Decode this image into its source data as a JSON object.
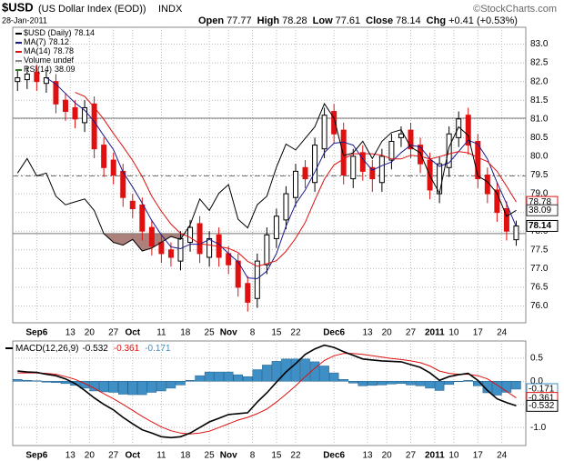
{
  "header": {
    "symbol": "$USD",
    "name": "(US Dollar Index (EOD))",
    "exchange": "INDX",
    "date": "28-Jan-2011",
    "watermark": "©StockCharts.com",
    "quote": [
      {
        "label": "Open",
        "value": 77.77
      },
      {
        "label": "High",
        "value": 78.28
      },
      {
        "label": "Low",
        "value": 77.61
      },
      {
        "label": "Close",
        "value": 78.14
      },
      {
        "label": "Chg",
        "value": "+0.41 (+0.53%)"
      }
    ]
  },
  "chart_data": [
    {
      "type": "candlestick",
      "price_name": "$USD (Daily)",
      "price_legend_value": 78.14,
      "volume_legend": "Volume undef",
      "up_color": "#000000",
      "down_color": "#e01010",
      "x": [
        0,
        2,
        4,
        6,
        8,
        10,
        12,
        14,
        16,
        18,
        20,
        22,
        24,
        26,
        28,
        30,
        32,
        34,
        36,
        38,
        40,
        42,
        44,
        46,
        48,
        50,
        52,
        54,
        56,
        58,
        60,
        62,
        64,
        66,
        68,
        70,
        72,
        74,
        76,
        78,
        80,
        82,
        84,
        86,
        88,
        90,
        92,
        94,
        96,
        98,
        100,
        102,
        104
      ],
      "open": [
        82.0,
        82.05,
        82.25,
        81.95,
        82.0,
        81.5,
        81.3,
        80.9,
        81.4,
        80.3,
        79.9,
        79.6,
        78.8,
        78.7,
        78.1,
        77.7,
        77.5,
        77.2,
        77.7,
        78.2,
        77.3,
        77.9,
        77.4,
        77.2,
        76.6,
        76.2,
        77.1,
        77.8,
        78.3,
        78.9,
        79.7,
        79.3,
        80.2,
        81.2,
        80.7,
        79.4,
        80.1,
        79.7,
        79.3,
        79.9,
        80.5,
        80.7,
        80.3,
        79.9,
        79.0,
        79.7,
        80.5,
        81.1,
        80.4,
        79.5,
        79.1,
        78.6,
        77.77
      ],
      "high": [
        82.3,
        82.4,
        82.45,
        82.3,
        82.2,
        81.7,
        81.5,
        81.5,
        81.6,
        80.5,
        80.1,
        79.8,
        79.0,
        78.9,
        78.3,
        77.9,
        77.7,
        78.0,
        78.3,
        78.4,
        78.0,
        78.1,
        77.6,
        77.4,
        76.8,
        77.4,
        78.1,
        78.6,
        79.2,
        79.8,
        79.9,
        80.5,
        81.3,
        81.4,
        80.9,
        80.2,
        80.3,
        79.9,
        80.2,
        80.6,
        80.8,
        80.9,
        80.5,
        80.1,
        80.0,
        80.8,
        81.2,
        81.3,
        80.6,
        79.7,
        79.3,
        78.8,
        78.28
      ],
      "low": [
        81.75,
        81.8,
        81.75,
        81.7,
        81.15,
        80.95,
        80.75,
        80.65,
        79.95,
        79.45,
        79.25,
        78.65,
        78.35,
        77.75,
        77.35,
        77.15,
        77.05,
        76.95,
        77.45,
        77.15,
        77.05,
        77.05,
        76.85,
        76.25,
        75.85,
        75.95,
        76.85,
        77.55,
        78.05,
        78.65,
        79.15,
        79.05,
        79.95,
        80.35,
        79.25,
        79.15,
        79.35,
        79.05,
        79.05,
        79.65,
        80.25,
        79.95,
        79.55,
        78.85,
        78.75,
        79.45,
        80.25,
        80.05,
        79.15,
        78.75,
        78.25,
        77.75,
        77.61
      ],
      "close": [
        82.1,
        82.2,
        82.0,
        82.1,
        81.4,
        81.2,
        81.0,
        81.3,
        80.2,
        79.7,
        79.5,
        78.9,
        78.6,
        78.0,
        77.6,
        77.4,
        77.3,
        77.8,
        78.1,
        77.4,
        77.8,
        77.3,
        77.1,
        76.5,
        76.1,
        77.2,
        77.9,
        78.4,
        79.0,
        79.6,
        79.4,
        80.3,
        81.1,
        80.6,
        79.5,
        80.0,
        79.6,
        79.4,
        80.0,
        80.4,
        80.6,
        80.2,
        79.8,
        79.1,
        79.8,
        80.6,
        81.0,
        80.3,
        79.4,
        79.0,
        78.5,
        78.0,
        78.14
      ],
      "series": [
        {
          "name": "MA(7)",
          "legend_value": 78.12,
          "color": "#1a1a8c",
          "values": [
            null,
            null,
            null,
            82.1,
            81.93,
            81.68,
            81.43,
            81.23,
            80.93,
            80.55,
            80.18,
            79.58,
            79.18,
            78.75,
            78.28,
            77.9,
            77.58,
            77.53,
            77.65,
            77.65,
            77.78,
            77.65,
            77.4,
            77.18,
            76.75,
            76.73,
            76.93,
            77.4,
            78.13,
            78.73,
            79.1,
            79.58,
            80.1,
            80.35,
            80.38,
            80.3,
            79.93,
            79.63,
            79.75,
            79.85,
            80.1,
            80.3,
            80.25,
            79.93,
            79.73,
            79.83,
            80.13,
            80.43,
            80.33,
            79.93,
            79.3,
            78.73,
            78.12
          ]
        },
        {
          "name": "MA(14)",
          "legend_value": 78.78,
          "color": "#e01010",
          "values": [
            null,
            null,
            null,
            null,
            null,
            null,
            81.71,
            81.6,
            81.31,
            80.99,
            80.61,
            80.26,
            79.89,
            79.46,
            78.93,
            78.53,
            78.19,
            77.94,
            77.83,
            77.66,
            77.63,
            77.59,
            77.54,
            77.43,
            77.19,
            77.06,
            77.13,
            77.21,
            77.46,
            77.81,
            78.23,
            78.83,
            79.39,
            79.77,
            79.93,
            80.07,
            80.07,
            80.07,
            80.03,
            79.93,
            79.93,
            80.03,
            80.0,
            79.93,
            79.99,
            80.07,
            80.13,
            80.09,
            79.97,
            79.86,
            79.6,
            79.2,
            78.78
          ]
        },
        {
          "name": "RSI(14)",
          "legend_value": 38.09,
          "color": "#000000",
          "axis": "y2",
          "values": [
            51,
            56,
            50,
            51,
            43,
            40,
            41,
            42,
            38,
            30,
            27,
            26,
            28,
            24,
            25,
            27,
            29,
            28,
            33,
            42,
            38,
            44,
            47,
            35,
            32,
            40,
            43,
            53,
            61,
            59,
            63,
            67,
            75,
            70,
            57,
            58,
            62,
            56,
            62,
            65,
            66,
            60,
            58,
            50,
            44,
            60,
            67,
            64,
            50,
            48,
            44,
            36,
            38.09
          ]
        }
      ],
      "y2lim": [
        -0.9,
        101.5
      ],
      "rsi_levels": [
        30,
        50,
        70
      ],
      "oversold_color": "#9e6b64",
      "xlim": [
        -1,
        106
      ],
      "ylim": [
        75.55,
        83.45
      ],
      "yticks": [
        {
          "value": 76,
          "label": "76.0"
        },
        76.5,
        {
          "value": 77,
          "label": "77.0"
        },
        77.5,
        {
          "value": 78,
          "label": "78.0"
        },
        78.5,
        {
          "value": 79,
          "label": "79.0"
        },
        79.5,
        {
          "value": 80,
          "label": "80.0"
        },
        80.5,
        {
          "value": 81,
          "label": "81.0"
        },
        81.5,
        {
          "value": 82,
          "label": "82.0"
        },
        82.5,
        {
          "value": 83,
          "label": "83.0"
        }
      ],
      "xticks": [
        {
          "value": 4,
          "label": "Sep6"
        },
        {
          "value": 11,
          "label": "13"
        },
        {
          "value": 15,
          "label": "20"
        },
        {
          "value": 20,
          "label": "27"
        },
        {
          "value": 24,
          "label": "Oct"
        },
        {
          "value": 30,
          "label": "11"
        },
        {
          "value": 35,
          "label": "18"
        },
        {
          "value": 40,
          "label": "25"
        },
        {
          "value": 44,
          "label": "Nov"
        },
        {
          "value": 49,
          "label": "8"
        },
        {
          "value": 54,
          "label": "15"
        },
        {
          "value": 58,
          "label": "22"
        },
        {
          "value": 66,
          "label": "Dec6"
        },
        {
          "value": 73,
          "label": "13"
        },
        {
          "value": 77,
          "label": "20"
        },
        {
          "value": 82,
          "label": "27"
        },
        {
          "value": 87,
          "label": "2011"
        },
        {
          "value": 91,
          "label": "10"
        },
        {
          "value": 96,
          "label": "17"
        },
        {
          "value": 101,
          "label": "24"
        }
      ],
      "grid": true
    },
    {
      "type": "macd",
      "title": "MACD(12,26,9)",
      "x": [
        0,
        2,
        4,
        6,
        8,
        10,
        12,
        14,
        16,
        18,
        20,
        22,
        24,
        26,
        28,
        30,
        32,
        34,
        36,
        38,
        40,
        42,
        44,
        46,
        48,
        50,
        52,
        54,
        56,
        58,
        60,
        62,
        64,
        66,
        68,
        70,
        72,
        74,
        76,
        78,
        80,
        82,
        84,
        86,
        88,
        90,
        92,
        94,
        96,
        98,
        100,
        102,
        104
      ],
      "macd": {
        "color": "#000000",
        "values": [
          0.22,
          0.2,
          0.19,
          0.15,
          0.12,
          0.05,
          -0.05,
          -0.2,
          -0.36,
          -0.5,
          -0.62,
          -0.78,
          -0.92,
          -1.05,
          -1.12,
          -1.2,
          -1.22,
          -1.2,
          -1.12,
          -1.0,
          -0.88,
          -0.8,
          -0.72,
          -0.7,
          -0.68,
          -0.45,
          -0.25,
          -0.02,
          0.2,
          0.38,
          0.58,
          0.7,
          0.78,
          0.73,
          0.64,
          0.56,
          0.48,
          0.46,
          0.44,
          0.43,
          0.42,
          0.36,
          0.3,
          0.18,
          0.02,
          0.1,
          0.14,
          0.17,
          0.02,
          -0.2,
          -0.38,
          -0.46,
          -0.532
        ]
      },
      "signal": {
        "color": "#e01010",
        "values": [
          0.18,
          0.18,
          0.18,
          0.17,
          0.15,
          0.1,
          0.04,
          -0.05,
          -0.15,
          -0.27,
          -0.38,
          -0.5,
          -0.63,
          -0.76,
          -0.88,
          -0.99,
          -1.07,
          -1.12,
          -1.14,
          -1.12,
          -1.08,
          -1.0,
          -0.92,
          -0.84,
          -0.78,
          -0.7,
          -0.6,
          -0.45,
          -0.28,
          -0.1,
          0.1,
          0.28,
          0.45,
          0.55,
          0.6,
          0.6,
          0.58,
          0.55,
          0.52,
          0.49,
          0.47,
          0.44,
          0.4,
          0.33,
          0.22,
          0.17,
          0.15,
          0.15,
          0.12,
          0.05,
          -0.08,
          -0.22,
          -0.361
        ]
      },
      "histogram": {
        "color": "#3d8fc6",
        "values": [
          0.04,
          0.02,
          0.01,
          -0.02,
          -0.03,
          -0.05,
          -0.09,
          -0.15,
          -0.21,
          -0.23,
          -0.24,
          -0.28,
          -0.29,
          -0.29,
          -0.24,
          -0.21,
          -0.15,
          -0.08,
          0.02,
          0.12,
          0.2,
          0.2,
          0.2,
          0.14,
          0.1,
          0.25,
          0.35,
          0.43,
          0.48,
          0.48,
          0.48,
          0.42,
          0.33,
          0.18,
          0.04,
          -0.04,
          -0.1,
          -0.09,
          -0.08,
          -0.06,
          -0.05,
          -0.08,
          -0.1,
          -0.15,
          -0.2,
          -0.07,
          -0.01,
          0.02,
          -0.1,
          -0.25,
          -0.3,
          -0.24,
          -0.171
        ]
      },
      "xlim": [
        -1,
        106
      ],
      "ylim": [
        -1.39,
        0.87
      ],
      "yticks": [
        {
          "value": -1,
          "label": "-1.0"
        },
        -0.5,
        {
          "value": 0,
          "label": "0.0"
        },
        0.5
      ],
      "xticks": [
        {
          "value": 4,
          "label": "Sep6"
        },
        {
          "value": 11,
          "label": "13"
        },
        {
          "value": 15,
          "label": "20"
        },
        {
          "value": 20,
          "label": "27"
        },
        {
          "value": 24,
          "label": "Oct"
        },
        {
          "value": 30,
          "label": "11"
        },
        {
          "value": 35,
          "label": "18"
        },
        {
          "value": 40,
          "label": "25"
        },
        {
          "value": 44,
          "label": "Nov"
        },
        {
          "value": 49,
          "label": "8"
        },
        {
          "value": 54,
          "label": "15"
        },
        {
          "value": 58,
          "label": "22"
        },
        {
          "value": 66,
          "label": "Dec6"
        },
        {
          "value": 73,
          "label": "13"
        },
        {
          "value": 77,
          "label": "20"
        },
        {
          "value": 82,
          "label": "27"
        },
        {
          "value": 87,
          "label": "2011"
        },
        {
          "value": 91,
          "label": "10"
        },
        {
          "value": 96,
          "label": "17"
        },
        {
          "value": 101,
          "label": "24"
        }
      ],
      "grid": true
    }
  ]
}
